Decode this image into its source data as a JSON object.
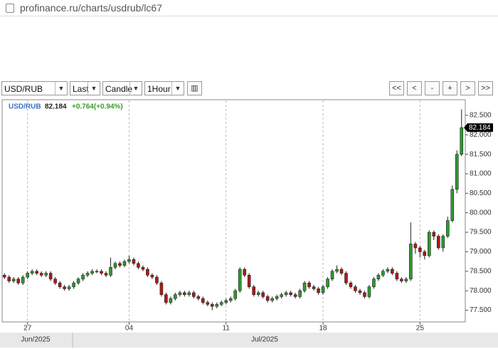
{
  "browser": {
    "url": "profinance.ru/charts/usdrub/lc67"
  },
  "toolbar": {
    "symbol": "USD/RUB",
    "price": "Last",
    "style": "Candle",
    "period": "1Hour",
    "buttons": [
      "<<",
      "<",
      "-",
      "+",
      ">",
      ">>"
    ]
  },
  "chart_data": {
    "type": "candlestick",
    "symbol": "USD/RUB",
    "last_price": "82.184",
    "change": "+0.764(+0.94%)",
    "up_color": "#2e9a2e",
    "down_color": "#b01818",
    "categories": [
      null,
      null,
      null,
      null,
      null,
      "27",
      null,
      null,
      null,
      null,
      null,
      null,
      null,
      null,
      null,
      null,
      null,
      null,
      null,
      null,
      null,
      null,
      null,
      null,
      null,
      null,
      null,
      "04",
      null,
      null,
      null,
      null,
      null,
      null,
      null,
      null,
      null,
      null,
      null,
      null,
      null,
      null,
      null,
      null,
      null,
      null,
      null,
      null,
      "11",
      null,
      null,
      null,
      null,
      null,
      null,
      null,
      null,
      null,
      null,
      null,
      null,
      null,
      null,
      null,
      null,
      null,
      null,
      null,
      null,
      "18",
      null,
      null,
      null,
      null,
      null,
      null,
      null,
      null,
      null,
      null,
      null,
      null,
      null,
      null,
      null,
      null,
      null,
      null,
      null,
      null,
      "25",
      null,
      null,
      null,
      null,
      null,
      null,
      null,
      null,
      null
    ],
    "open": [
      78.4,
      78.35,
      78.25,
      78.3,
      78.2,
      78.35,
      78.45,
      78.5,
      78.45,
      78.4,
      78.45,
      78.3,
      78.2,
      78.1,
      78.05,
      78.1,
      78.2,
      78.3,
      78.4,
      78.45,
      78.5,
      78.5,
      78.45,
      78.4,
      78.6,
      78.7,
      78.65,
      78.75,
      78.8,
      78.7,
      78.6,
      78.55,
      78.4,
      78.35,
      78.2,
      77.9,
      77.7,
      77.8,
      77.9,
      77.95,
      77.9,
      77.95,
      77.85,
      77.8,
      77.7,
      77.65,
      77.6,
      77.65,
      77.7,
      77.75,
      77.8,
      78.0,
      78.55,
      78.4,
      78.1,
      77.9,
      77.95,
      77.85,
      77.75,
      77.8,
      77.85,
      77.9,
      77.95,
      77.9,
      77.85,
      78.0,
      78.2,
      78.1,
      78.05,
      77.95,
      78.1,
      78.3,
      78.5,
      78.55,
      78.45,
      78.2,
      78.1,
      78.0,
      77.95,
      77.85,
      78.1,
      78.3,
      78.4,
      78.5,
      78.55,
      78.45,
      78.3,
      78.25,
      78.3,
      79.2,
      79.1,
      79.0,
      78.9,
      79.5,
      79.4,
      79.1,
      79.4,
      79.8,
      80.6,
      81.5
    ],
    "high": [
      78.45,
      78.4,
      78.35,
      78.35,
      78.4,
      78.5,
      78.55,
      78.55,
      78.5,
      78.5,
      78.5,
      78.35,
      78.25,
      78.15,
      78.15,
      78.25,
      78.35,
      78.45,
      78.5,
      78.55,
      78.55,
      78.55,
      78.5,
      78.85,
      78.75,
      78.75,
      78.8,
      78.9,
      78.85,
      78.75,
      78.65,
      78.6,
      78.45,
      78.4,
      78.25,
      77.95,
      77.85,
      77.95,
      78.0,
      78.0,
      78.0,
      78.0,
      77.9,
      77.85,
      77.75,
      77.7,
      77.7,
      77.75,
      77.8,
      77.85,
      78.05,
      78.6,
      78.6,
      78.45,
      78.15,
      78.0,
      78.0,
      77.9,
      77.85,
      77.9,
      77.95,
      78.0,
      78.0,
      77.95,
      78.05,
      78.25,
      78.25,
      78.15,
      78.1,
      78.15,
      78.35,
      78.55,
      78.65,
      78.6,
      78.5,
      78.25,
      78.15,
      78.05,
      78.0,
      78.15,
      78.35,
      78.45,
      78.55,
      78.6,
      78.6,
      78.5,
      78.35,
      78.35,
      79.75,
      79.25,
      79.15,
      79.05,
      79.55,
      79.55,
      79.45,
      79.45,
      79.9,
      80.7,
      81.6,
      82.65
    ],
    "low": [
      78.3,
      78.2,
      78.2,
      78.15,
      78.15,
      78.3,
      78.4,
      78.4,
      78.35,
      78.35,
      78.25,
      78.15,
      78.05,
      78.0,
      78.0,
      78.05,
      78.15,
      78.25,
      78.35,
      78.4,
      78.45,
      78.4,
      78.35,
      78.35,
      78.55,
      78.6,
      78.6,
      78.7,
      78.65,
      78.55,
      78.5,
      78.35,
      78.3,
      78.15,
      77.85,
      77.65,
      77.65,
      77.75,
      77.85,
      77.85,
      77.85,
      77.8,
      77.75,
      77.65,
      77.6,
      77.5,
      77.55,
      77.6,
      77.65,
      77.7,
      77.75,
      77.95,
      78.35,
      78.05,
      77.85,
      77.85,
      77.8,
      77.7,
      77.7,
      77.75,
      77.8,
      77.85,
      77.85,
      77.8,
      77.8,
      77.95,
      78.05,
      78.0,
      77.9,
      77.9,
      78.05,
      78.25,
      78.45,
      78.4,
      78.15,
      78.05,
      77.95,
      77.9,
      77.8,
      77.8,
      78.05,
      78.25,
      78.35,
      78.45,
      78.4,
      78.25,
      78.2,
      78.2,
      78.25,
      78.95,
      78.85,
      78.8,
      78.85,
      79.3,
      79.05,
      79.0,
      79.35,
      79.75,
      80.5,
      81.45
    ],
    "close": [
      78.35,
      78.25,
      78.3,
      78.2,
      78.35,
      78.45,
      78.5,
      78.45,
      78.4,
      78.45,
      78.3,
      78.2,
      78.1,
      78.05,
      78.1,
      78.2,
      78.3,
      78.4,
      78.45,
      78.5,
      78.5,
      78.45,
      78.4,
      78.6,
      78.7,
      78.65,
      78.75,
      78.8,
      78.7,
      78.6,
      78.55,
      78.4,
      78.35,
      78.2,
      77.9,
      77.7,
      77.8,
      77.9,
      77.95,
      77.9,
      77.95,
      77.85,
      77.8,
      77.7,
      77.65,
      77.6,
      77.65,
      77.7,
      77.75,
      77.8,
      78.0,
      78.55,
      78.4,
      78.1,
      77.9,
      77.95,
      77.85,
      77.75,
      77.8,
      77.85,
      77.9,
      77.95,
      77.9,
      77.85,
      78.0,
      78.2,
      78.1,
      78.05,
      77.95,
      78.1,
      78.3,
      78.5,
      78.55,
      78.45,
      78.2,
      78.1,
      78.0,
      77.95,
      77.85,
      78.1,
      78.3,
      78.4,
      78.5,
      78.55,
      78.45,
      78.3,
      78.25,
      78.3,
      79.2,
      79.1,
      79.0,
      78.9,
      79.5,
      79.4,
      79.1,
      79.4,
      79.8,
      80.6,
      81.5,
      82.184
    ],
    "ylim": [
      77.2,
      82.9
    ],
    "yticks": [
      {
        "value": 77.5,
        "label": "77.500"
      },
      {
        "value": 78,
        "label": "78.000"
      },
      {
        "value": 78.5,
        "label": "78.500"
      },
      {
        "value": 79,
        "label": "79.000"
      },
      {
        "value": 79.5,
        "label": "79.500"
      },
      {
        "value": 80,
        "label": "80.000"
      },
      {
        "value": 80.5,
        "label": "80.500"
      },
      {
        "value": 81,
        "label": "81.000"
      },
      {
        "value": 81.5,
        "label": "81.500"
      },
      {
        "value": 82,
        "label": "82.000"
      },
      {
        "value": 82.5,
        "label": "82.500"
      }
    ],
    "months": [
      "Jun/2025",
      "Jul/2025"
    ],
    "grid": true
  }
}
